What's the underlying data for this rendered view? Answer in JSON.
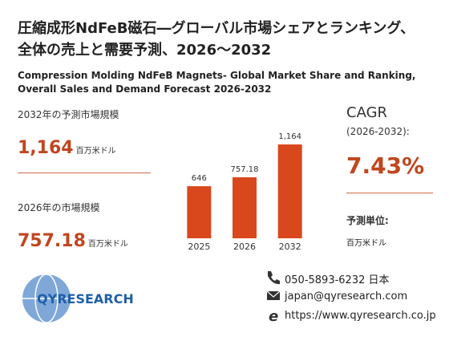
{
  "header": {
    "title": "圧縮成形NdFeB磁石―グローバル市場シェアとランキング、全体の売上と需要予測、2026～2032",
    "subtitle": "Compression Molding NdFeB Magnets- Global Market Share and Ranking, Overall Sales and Demand Forecast 2026-2032"
  },
  "stats": {
    "forecast_label": "2032年の予測市場規模",
    "forecast_value": "1,164",
    "forecast_unit": "百万米ドル",
    "current_label": "2026年の市場規模",
    "current_value": "757.18",
    "current_unit": "百万米ドル"
  },
  "chart_data": {
    "type": "bar",
    "categories": [
      "2025",
      "2026",
      "2032"
    ],
    "values": [
      646,
      757.18,
      1164
    ],
    "value_labels": [
      "646",
      "757.18",
      "1,164"
    ],
    "color": "#d9481c"
  },
  "cagr": {
    "label": "CAGR",
    "period": "(2026-2032):",
    "value": "7.43%",
    "unit_label": "予測単位:",
    "unit": "百万米ドル"
  },
  "logo": {
    "text": "QYRESEARCH"
  },
  "contact": {
    "phone": "050-5893-6232 日本",
    "email": "japan@qyresearch.com",
    "url": "https://www.qyresearch.co.jp"
  }
}
